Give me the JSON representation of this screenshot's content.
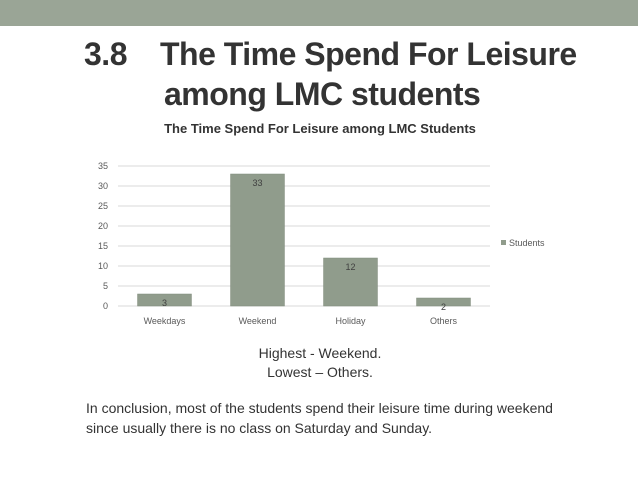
{
  "slide": {
    "number": "3.8",
    "title_line1": "The Time Spend For Leisure",
    "title_line2": "among LMC students",
    "summary_highest": "Highest - Weekend.",
    "summary_lowest": "Lowest – Others.",
    "conclusion": "In conclusion, most of the students spend their leisure time during weekend since usually there is no class on Saturday and Sunday."
  },
  "colors": {
    "top_bar": "#9aa596",
    "bar": "#909c8c",
    "bar_stroke": "#7f8a7b",
    "grid": "#d9d9d9",
    "text": "#333333"
  },
  "chart_data": {
    "type": "bar",
    "title": "The Time Spend For Leisure among LMC Students",
    "categories": [
      "Weekdays",
      "Weekend",
      "Holiday",
      "Others"
    ],
    "series": [
      {
        "name": "Students",
        "values": [
          3,
          33,
          12,
          2
        ]
      }
    ],
    "ylim": [
      0,
      35
    ],
    "yticks": [
      0,
      5,
      10,
      15,
      20,
      25,
      30,
      35
    ],
    "grid": true,
    "legend": "right",
    "data_labels": true
  }
}
